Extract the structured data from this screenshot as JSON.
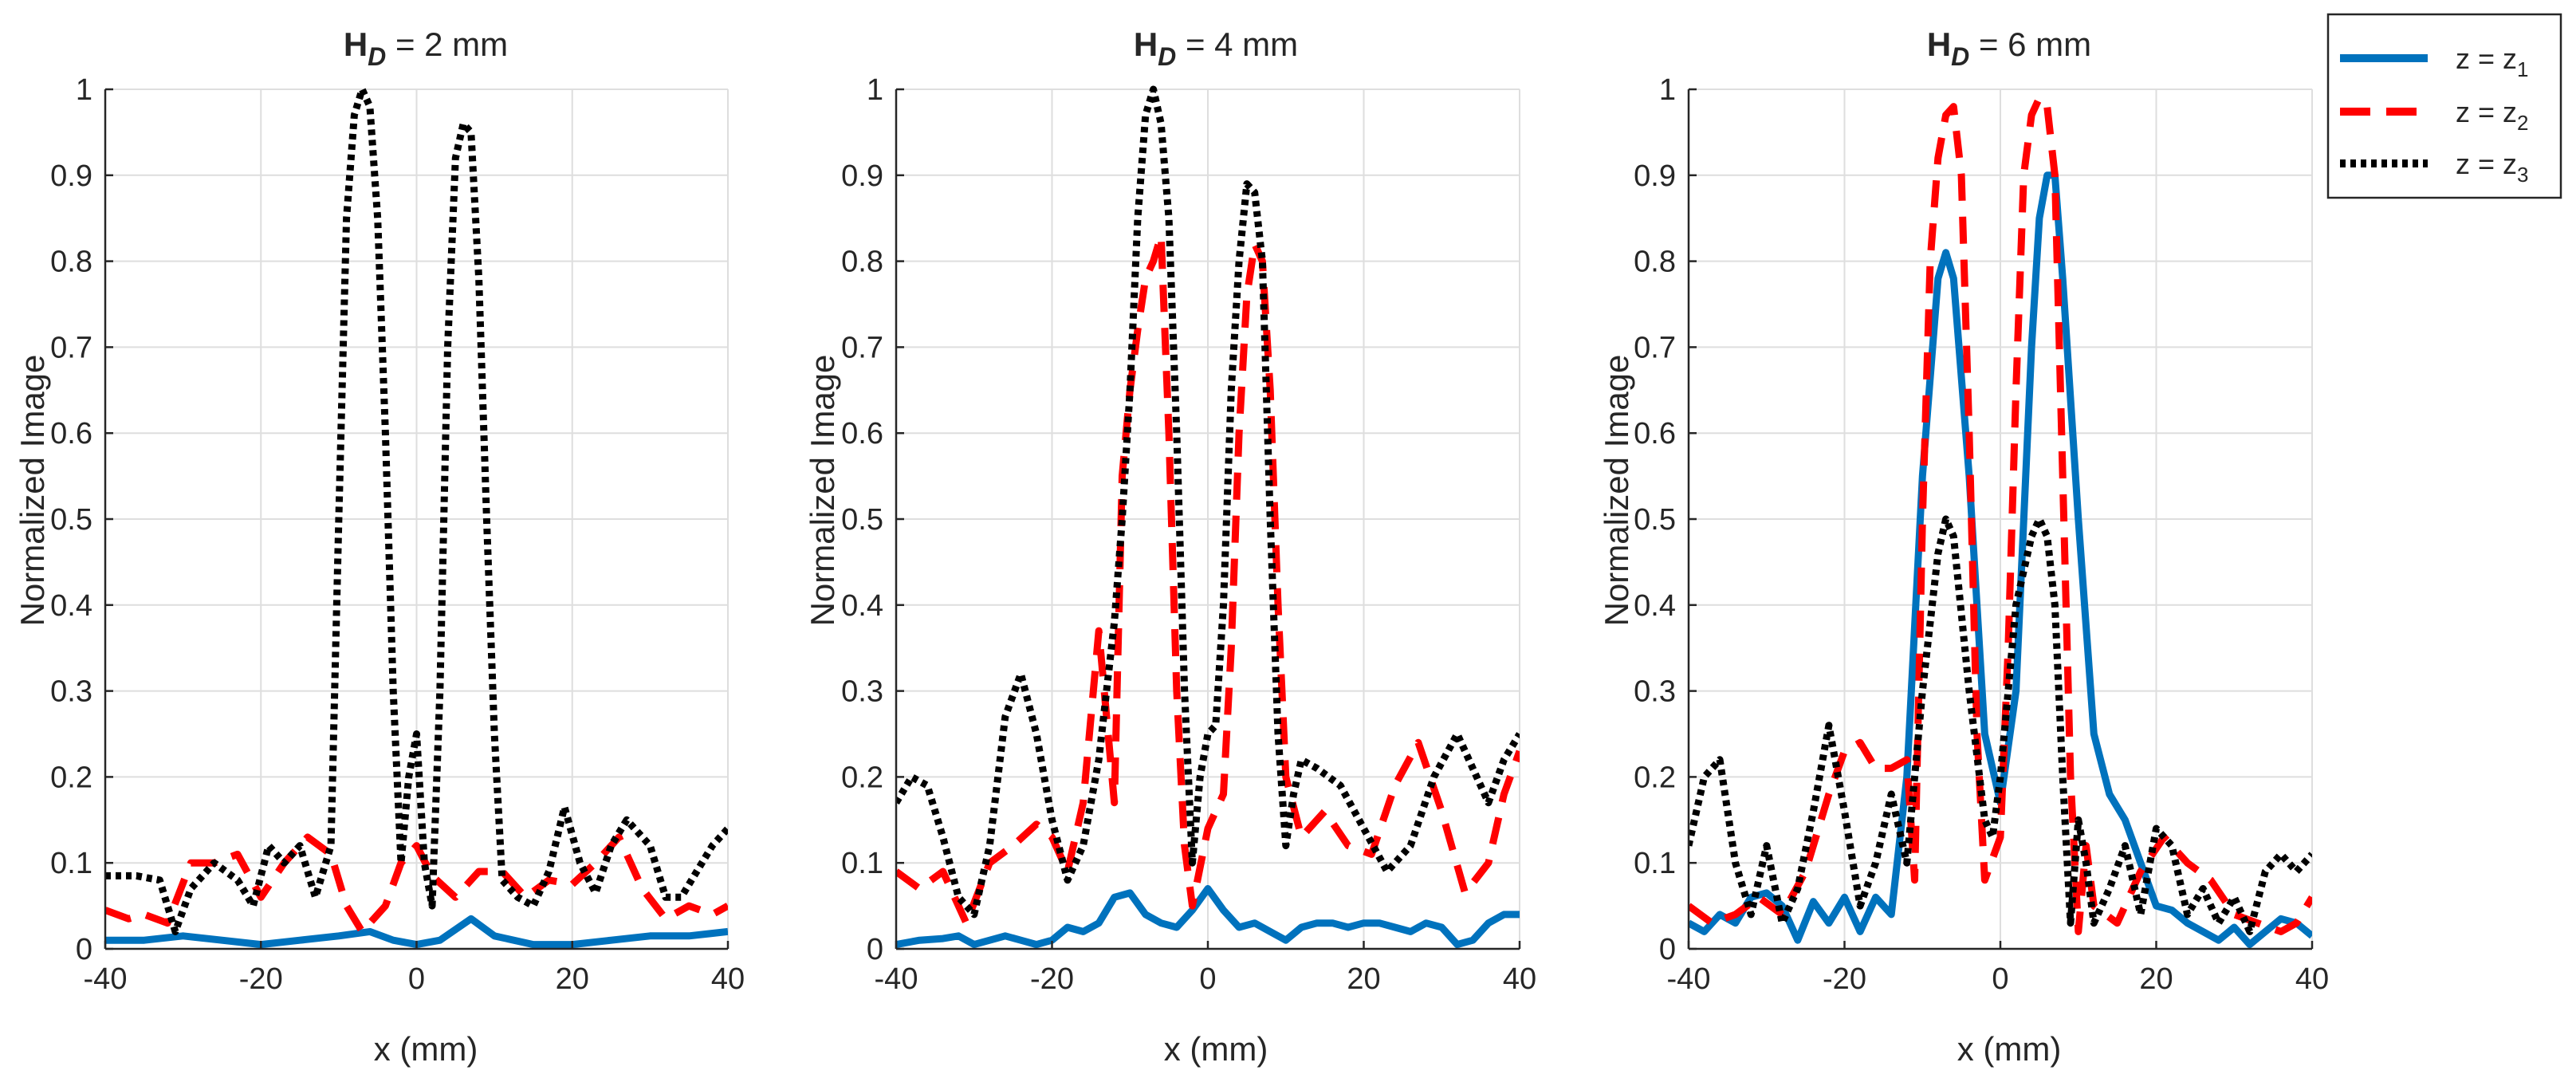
{
  "legend": {
    "entries": [
      {
        "label": "z = z",
        "sub": "1",
        "color": "#0072BD",
        "style": "solid"
      },
      {
        "label": "z = z",
        "sub": "2",
        "color": "#FF0000",
        "style": "dashed"
      },
      {
        "label": "z = z",
        "sub": "3",
        "color": "#000000",
        "style": "dotted"
      }
    ]
  },
  "chart_data": [
    {
      "type": "line",
      "title_main": "H",
      "title_sub": "D",
      "title_rest": " = 2 mm",
      "xlabel": "x (mm)",
      "ylabel": "Normalized Image",
      "xlim": [
        -40,
        40
      ],
      "ylim": [
        0,
        1
      ],
      "xticks": [
        -40,
        -20,
        0,
        20,
        40
      ],
      "yticks": [
        0,
        0.1,
        0.2,
        0.3,
        0.4,
        0.5,
        0.6,
        0.7,
        0.8,
        0.9,
        1
      ],
      "grid": true,
      "series": [
        {
          "name": "z = z1",
          "x": [
            -40,
            -35,
            -30,
            -25,
            -20,
            -15,
            -10,
            -6,
            -3,
            0,
            3,
            7,
            10,
            15,
            20,
            25,
            30,
            35,
            40
          ],
          "y": [
            0.01,
            0.01,
            0.015,
            0.01,
            0.005,
            0.01,
            0.015,
            0.02,
            0.01,
            0.005,
            0.01,
            0.035,
            0.015,
            0.005,
            0.005,
            0.01,
            0.015,
            0.015,
            0.02
          ]
        },
        {
          "name": "z = z2",
          "x": [
            -40,
            -37,
            -35,
            -32,
            -29,
            -26,
            -23,
            -20,
            -17,
            -14,
            -11,
            -9,
            -7,
            -4,
            -2,
            0,
            2,
            5,
            8,
            11,
            14,
            17,
            20,
            23,
            26,
            29,
            32,
            35,
            38,
            40
          ],
          "y": [
            0.045,
            0.035,
            0.04,
            0.03,
            0.1,
            0.1,
            0.11,
            0.06,
            0.1,
            0.13,
            0.11,
            0.05,
            0.02,
            0.05,
            0.1,
            0.12,
            0.085,
            0.06,
            0.09,
            0.09,
            0.06,
            0.08,
            0.075,
            0.1,
            0.13,
            0.07,
            0.035,
            0.05,
            0.04,
            0.05
          ]
        },
        {
          "name": "z = z3",
          "x": [
            -40,
            -36,
            -33,
            -31,
            -29,
            -26,
            -23,
            -21,
            -19,
            -17,
            -15,
            -13,
            -11,
            -10,
            -9,
            -8,
            -7,
            -6,
            -5,
            -4,
            -3,
            -2,
            -1,
            0,
            1,
            2,
            3,
            4,
            5,
            6,
            7,
            8,
            9,
            10,
            11,
            13,
            15,
            17,
            19,
            21,
            23,
            25,
            27,
            30,
            32,
            34,
            36,
            38,
            40
          ],
          "y": [
            0.085,
            0.085,
            0.08,
            0.02,
            0.07,
            0.1,
            0.08,
            0.05,
            0.12,
            0.1,
            0.12,
            0.06,
            0.12,
            0.5,
            0.85,
            0.97,
            1.0,
            0.98,
            0.85,
            0.6,
            0.3,
            0.1,
            0.2,
            0.25,
            0.1,
            0.05,
            0.3,
            0.7,
            0.92,
            0.96,
            0.95,
            0.78,
            0.5,
            0.25,
            0.08,
            0.06,
            0.05,
            0.09,
            0.165,
            0.1,
            0.065,
            0.12,
            0.15,
            0.12,
            0.06,
            0.06,
            0.09,
            0.12,
            0.14
          ]
        }
      ]
    },
    {
      "type": "line",
      "title_main": "H",
      "title_sub": "D",
      "title_rest": " = 4 mm",
      "xlabel": "x (mm)",
      "ylabel": "Normalized Image",
      "xlim": [
        -40,
        40
      ],
      "ylim": [
        0,
        1
      ],
      "xticks": [
        -40,
        -20,
        0,
        20,
        40
      ],
      "yticks": [
        0,
        0.1,
        0.2,
        0.3,
        0.4,
        0.5,
        0.6,
        0.7,
        0.8,
        0.9,
        1
      ],
      "grid": true,
      "series": [
        {
          "name": "z = z1",
          "x": [
            -40,
            -37,
            -34,
            -32,
            -30,
            -28,
            -26,
            -24,
            -22,
            -20,
            -18,
            -16,
            -14,
            -12,
            -10,
            -8,
            -6,
            -4,
            -2,
            0,
            2,
            4,
            6,
            8,
            10,
            12,
            14,
            16,
            18,
            20,
            22,
            24,
            26,
            28,
            30,
            32,
            34,
            36,
            38,
            40
          ],
          "y": [
            0.005,
            0.01,
            0.012,
            0.015,
            0.005,
            0.01,
            0.015,
            0.01,
            0.005,
            0.01,
            0.025,
            0.02,
            0.03,
            0.06,
            0.065,
            0.04,
            0.03,
            0.025,
            0.045,
            0.07,
            0.045,
            0.025,
            0.03,
            0.02,
            0.01,
            0.025,
            0.03,
            0.03,
            0.025,
            0.03,
            0.03,
            0.025,
            0.02,
            0.03,
            0.025,
            0.005,
            0.01,
            0.03,
            0.04,
            0.04
          ]
        },
        {
          "name": "z = z2",
          "x": [
            -40,
            -37,
            -34,
            -31,
            -28,
            -25,
            -22,
            -20,
            -18,
            -16,
            -14,
            -12,
            -11,
            -10,
            -9,
            -8,
            -7,
            -6,
            -5,
            -4,
            -3,
            -2,
            0,
            2,
            3,
            4,
            5,
            6,
            7,
            8,
            9,
            10,
            12,
            15,
            18,
            21,
            24,
            27,
            30,
            33,
            36,
            38,
            40
          ],
          "y": [
            0.09,
            0.07,
            0.09,
            0.03,
            0.1,
            0.12,
            0.145,
            0.13,
            0.09,
            0.17,
            0.37,
            0.17,
            0.55,
            0.65,
            0.72,
            0.78,
            0.8,
            0.83,
            0.6,
            0.3,
            0.12,
            0.05,
            0.14,
            0.18,
            0.35,
            0.6,
            0.76,
            0.82,
            0.8,
            0.65,
            0.4,
            0.2,
            0.13,
            0.16,
            0.12,
            0.11,
            0.19,
            0.24,
            0.16,
            0.065,
            0.1,
            0.18,
            0.23
          ]
        },
        {
          "name": "z = z3",
          "x": [
            -40,
            -38,
            -36,
            -34,
            -32,
            -30,
            -28,
            -26,
            -24,
            -22,
            -20,
            -18,
            -16,
            -14,
            -13,
            -12,
            -11,
            -10,
            -9,
            -8,
            -7,
            -6,
            -5,
            -4,
            -3,
            -2,
            -1,
            0,
            1,
            2,
            3,
            4,
            5,
            6,
            7,
            8,
            9,
            10,
            11,
            12,
            14,
            17,
            20,
            23,
            26,
            29,
            32,
            34,
            36,
            38,
            40
          ],
          "y": [
            0.17,
            0.2,
            0.19,
            0.13,
            0.06,
            0.04,
            0.12,
            0.27,
            0.32,
            0.25,
            0.15,
            0.08,
            0.12,
            0.22,
            0.3,
            0.38,
            0.5,
            0.65,
            0.85,
            0.97,
            1.0,
            0.96,
            0.85,
            0.6,
            0.3,
            0.1,
            0.2,
            0.25,
            0.26,
            0.4,
            0.65,
            0.8,
            0.89,
            0.88,
            0.8,
            0.5,
            0.25,
            0.12,
            0.18,
            0.22,
            0.21,
            0.19,
            0.14,
            0.09,
            0.12,
            0.2,
            0.25,
            0.21,
            0.17,
            0.22,
            0.25
          ]
        }
      ]
    },
    {
      "type": "line",
      "title_main": "H",
      "title_sub": "D",
      "title_rest": " = 6 mm",
      "xlabel": "x (mm)",
      "ylabel": "Normalized Image",
      "xlim": [
        -40,
        40
      ],
      "ylim": [
        0,
        1
      ],
      "xticks": [
        -40,
        -20,
        0,
        20,
        40
      ],
      "yticks": [
        0,
        0.1,
        0.2,
        0.3,
        0.4,
        0.5,
        0.6,
        0.7,
        0.8,
        0.9,
        1
      ],
      "grid": true,
      "series": [
        {
          "name": "z = z1",
          "x": [
            -40,
            -38,
            -36,
            -34,
            -32,
            -30,
            -28,
            -26,
            -24,
            -22,
            -20,
            -18,
            -16,
            -14,
            -12,
            -10,
            -8,
            -7,
            -6,
            -4,
            -2,
            0,
            2,
            4,
            5,
            6,
            7,
            8,
            10,
            12,
            14,
            16,
            18,
            20,
            22,
            24,
            26,
            28,
            30,
            32,
            34,
            36,
            38,
            40
          ],
          "y": [
            0.03,
            0.02,
            0.04,
            0.03,
            0.06,
            0.065,
            0.05,
            0.01,
            0.055,
            0.03,
            0.06,
            0.02,
            0.06,
            0.04,
            0.2,
            0.55,
            0.78,
            0.81,
            0.78,
            0.55,
            0.25,
            0.17,
            0.3,
            0.7,
            0.85,
            0.9,
            0.9,
            0.78,
            0.5,
            0.25,
            0.18,
            0.15,
            0.1,
            0.05,
            0.045,
            0.03,
            0.02,
            0.01,
            0.025,
            0.005,
            0.02,
            0.035,
            0.03,
            0.015
          ]
        },
        {
          "name": "z = z2",
          "x": [
            -40,
            -37,
            -34,
            -31,
            -28,
            -25,
            -22,
            -20,
            -18,
            -16,
            -14,
            -12,
            -11,
            -10,
            -9,
            -8,
            -7,
            -6,
            -5,
            -4,
            -3,
            -2,
            0,
            1,
            2,
            3,
            4,
            5,
            6,
            7,
            8,
            9,
            10,
            11,
            12,
            15,
            18,
            21,
            24,
            27,
            30,
            33,
            36,
            38,
            40
          ],
          "y": [
            0.05,
            0.03,
            0.04,
            0.06,
            0.04,
            0.09,
            0.18,
            0.23,
            0.24,
            0.21,
            0.21,
            0.22,
            0.08,
            0.5,
            0.8,
            0.92,
            0.97,
            0.98,
            0.9,
            0.6,
            0.25,
            0.08,
            0.13,
            0.35,
            0.65,
            0.9,
            0.97,
            0.99,
            0.98,
            0.9,
            0.55,
            0.2,
            0.02,
            0.12,
            0.05,
            0.03,
            0.09,
            0.13,
            0.1,
            0.08,
            0.04,
            0.03,
            0.02,
            0.03,
            0.06
          ]
        },
        {
          "name": "z = z3",
          "x": [
            -40,
            -38,
            -36,
            -34,
            -32,
            -30,
            -28,
            -26,
            -24,
            -22,
            -20,
            -18,
            -16,
            -14,
            -12,
            -10,
            -8,
            -7,
            -6,
            -4,
            -2,
            -1,
            0,
            1,
            2,
            4,
            5,
            6,
            7,
            8,
            9,
            10,
            11,
            12,
            14,
            16,
            18,
            20,
            22,
            24,
            26,
            28,
            30,
            32,
            34,
            36,
            38,
            40
          ],
          "y": [
            0.12,
            0.2,
            0.22,
            0.1,
            0.04,
            0.12,
            0.03,
            0.07,
            0.16,
            0.26,
            0.16,
            0.05,
            0.1,
            0.18,
            0.1,
            0.3,
            0.46,
            0.5,
            0.48,
            0.3,
            0.15,
            0.13,
            0.2,
            0.3,
            0.4,
            0.48,
            0.5,
            0.48,
            0.4,
            0.2,
            0.03,
            0.15,
            0.1,
            0.03,
            0.07,
            0.12,
            0.04,
            0.14,
            0.12,
            0.04,
            0.07,
            0.03,
            0.06,
            0.02,
            0.09,
            0.11,
            0.09,
            0.11
          ]
        }
      ]
    }
  ]
}
